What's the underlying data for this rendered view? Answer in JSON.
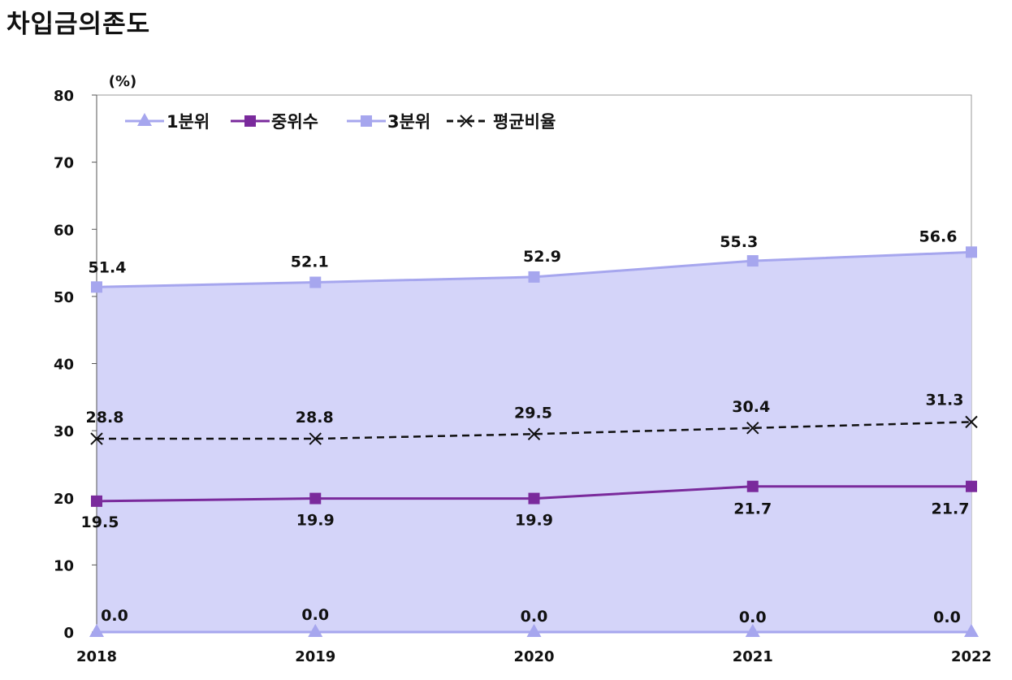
{
  "title": "차입금의존도",
  "chart_data": {
    "type": "line",
    "x": [
      "2018",
      "2019",
      "2020",
      "2021",
      "2022"
    ],
    "ylabel": "(%)",
    "ylim": [
      0,
      80
    ],
    "yticks": [
      0,
      10,
      20,
      30,
      40,
      50,
      60,
      70,
      80
    ],
    "grid": false,
    "legend_position": "top-left",
    "area_fill_color": "#d4d4f9",
    "series": [
      {
        "name": "1분위",
        "values": [
          0.0,
          0.0,
          0.0,
          0.0,
          0.0
        ],
        "labels": [
          "0.0",
          "0.0",
          "0.0",
          "0.0",
          "0.0"
        ],
        "color": "#a6a6ee",
        "marker": "triangle",
        "style": "solid"
      },
      {
        "name": "중위수",
        "values": [
          19.5,
          19.9,
          19.9,
          21.7,
          21.7
        ],
        "labels": [
          "19.5",
          "19.9",
          "19.9",
          "21.7",
          "21.7"
        ],
        "color": "#7a2a9c",
        "marker": "square",
        "style": "solid"
      },
      {
        "name": "3분위",
        "values": [
          51.4,
          52.1,
          52.9,
          55.3,
          56.6
        ],
        "labels": [
          "51.4",
          "52.1",
          "52.9",
          "55.3",
          "56.6"
        ],
        "color": "#a6a6ee",
        "marker": "square",
        "style": "solid"
      },
      {
        "name": "평균비율",
        "values": [
          28.8,
          28.8,
          29.5,
          30.4,
          31.3
        ],
        "labels": [
          "28.8",
          "28.8",
          "29.5",
          "30.4",
          "31.3"
        ],
        "color": "#111111",
        "marker": "cross",
        "style": "dashed"
      }
    ]
  }
}
